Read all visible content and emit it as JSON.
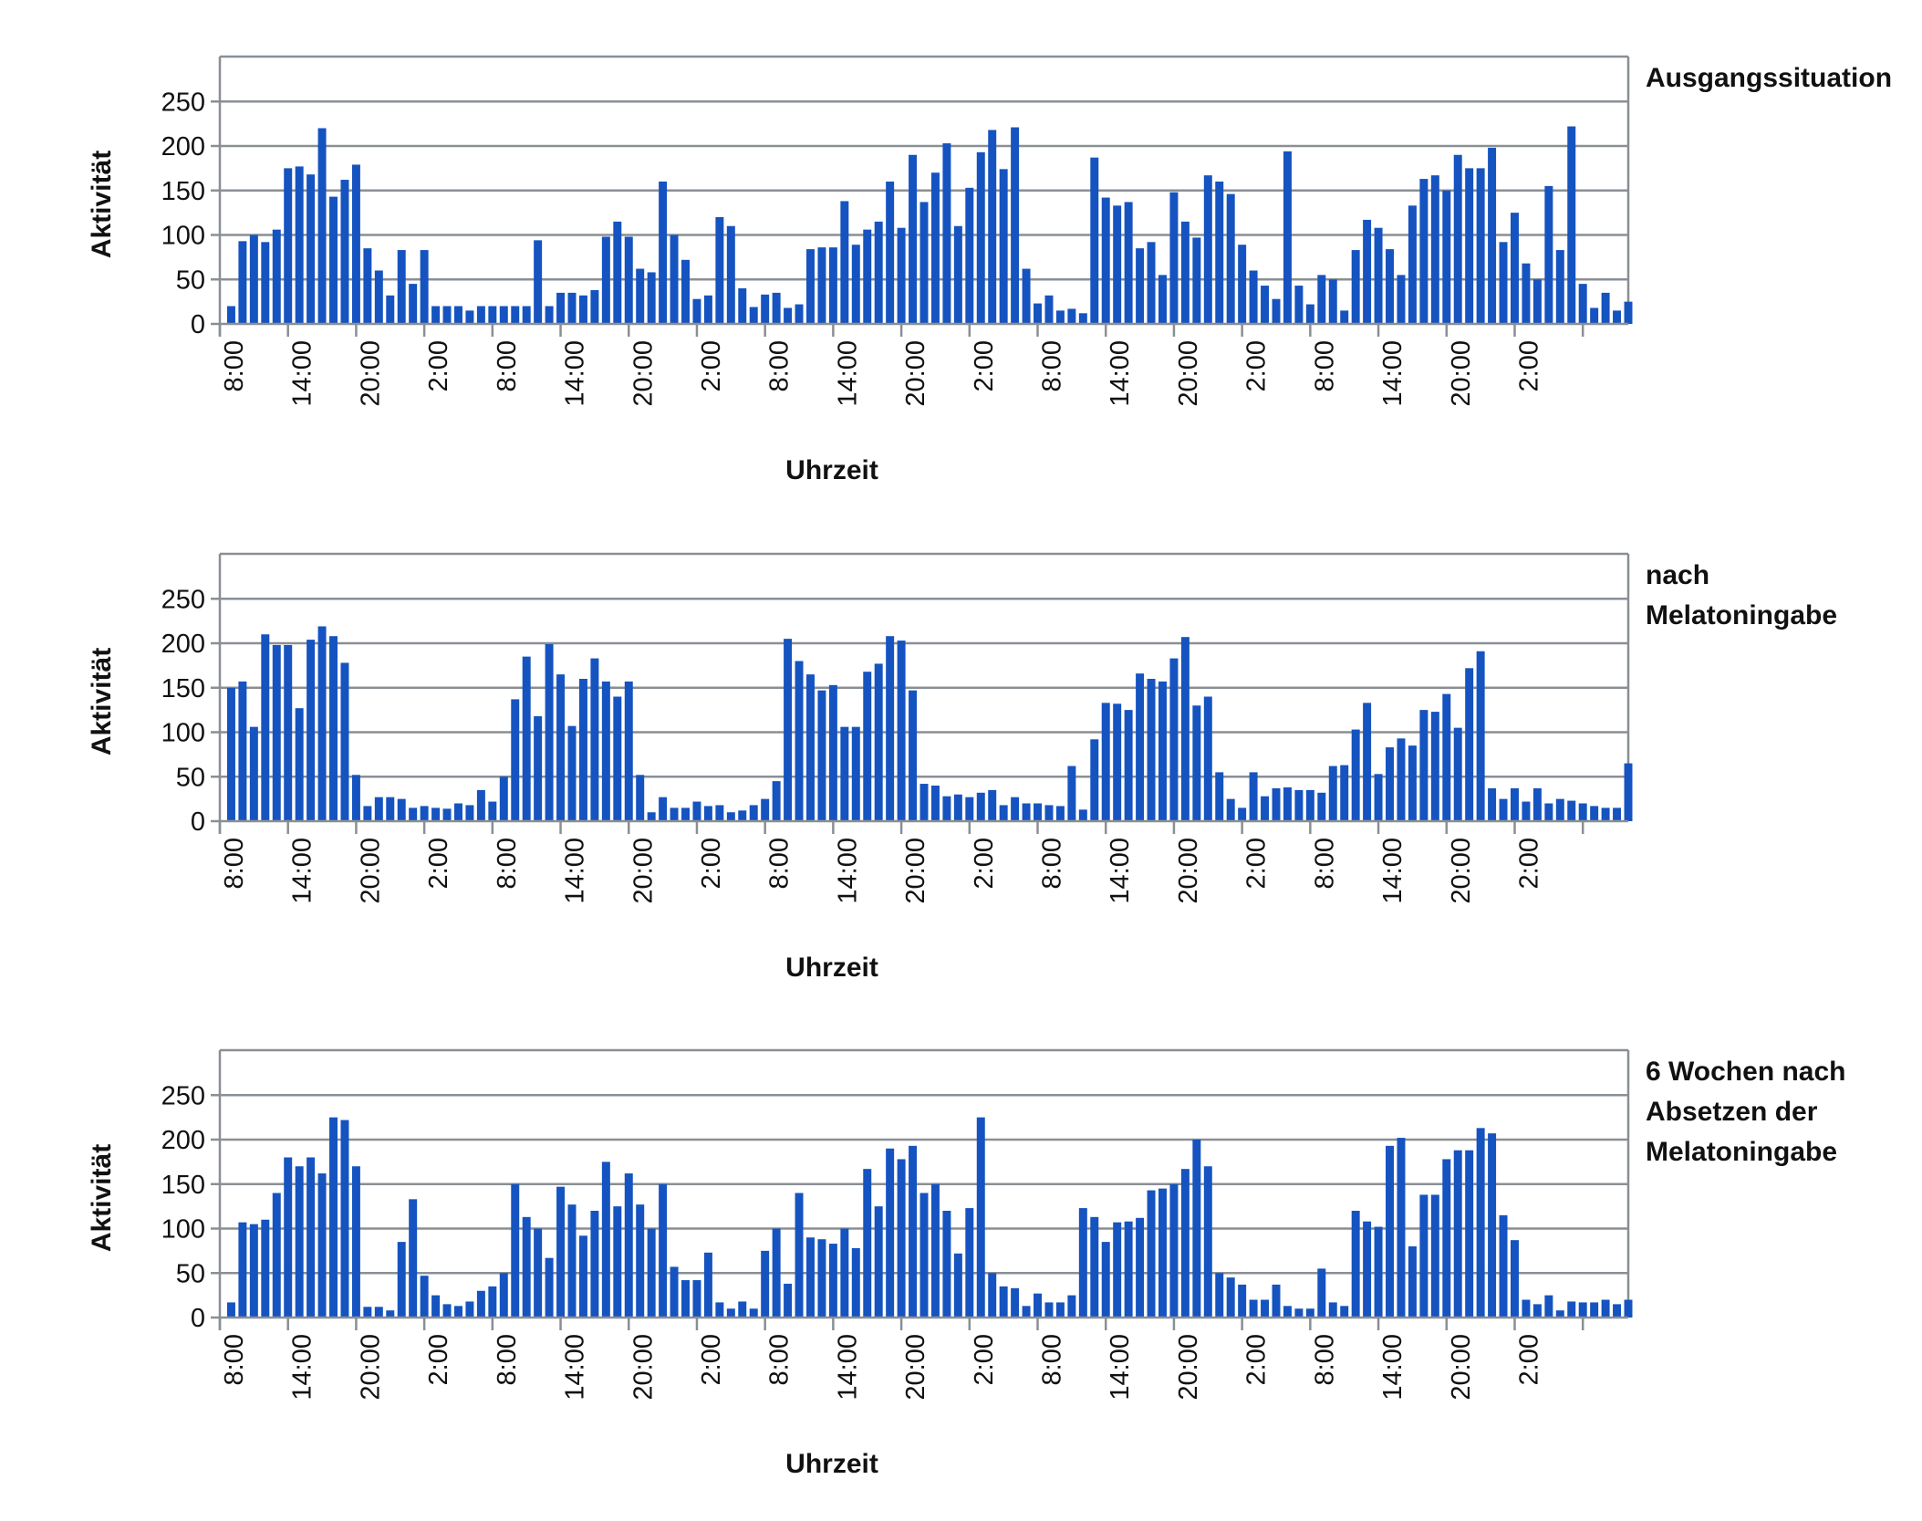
{
  "chart_data": [
    {
      "type": "bar",
      "title": "Ausgangssituation",
      "xlabel": "Uhrzeit",
      "ylabel": "Aktivität",
      "ylim": [
        0,
        300
      ],
      "yticks": [
        0,
        50,
        100,
        150,
        200,
        250
      ],
      "xtick_labels": [
        "8:00",
        "14:00",
        "20:00",
        "2:00",
        "8:00",
        "14:00",
        "20:00",
        "2:00",
        "8:00",
        "14:00",
        "20:00",
        "2:00",
        "8:00",
        "14:00",
        "20:00",
        "2:00",
        "8:00",
        "14:00",
        "20:00",
        "2:00"
      ],
      "color": "#1553c0",
      "values": [
        20,
        93,
        100,
        92,
        106,
        175,
        177,
        168,
        220,
        143,
        162,
        179,
        85,
        60,
        32,
        83,
        45,
        83,
        20,
        20,
        20,
        15,
        20,
        20,
        20,
        20,
        20,
        94,
        20,
        35,
        35,
        32,
        38,
        98,
        115,
        98,
        62,
        58,
        160,
        100,
        72,
        28,
        32,
        120,
        110,
        40,
        19,
        33,
        35,
        18,
        22,
        84,
        86,
        86,
        138,
        89,
        106,
        115,
        160,
        108,
        190,
        137,
        170,
        203,
        110,
        153,
        193,
        218,
        174,
        221,
        62,
        23,
        32,
        15,
        17,
        12,
        187,
        142,
        133,
        137,
        85,
        92,
        55,
        148,
        115,
        97,
        167,
        160,
        146,
        89,
        60,
        43,
        28,
        194,
        43,
        22,
        55,
        50,
        15,
        83,
        117,
        108,
        84,
        55,
        133,
        163,
        167,
        150,
        190,
        175,
        175,
        198,
        92,
        125,
        68,
        50,
        155,
        83,
        222,
        45,
        18,
        35,
        15,
        25
      ],
      "slot_count": 124
    },
    {
      "type": "bar",
      "title": "nach Melatoningabe",
      "xlabel": "Uhrzeit",
      "ylabel": "Aktivität",
      "ylim": [
        0,
        300
      ],
      "yticks": [
        0,
        50,
        100,
        150,
        200,
        250
      ],
      "xtick_labels": [
        "8:00",
        "14:00",
        "20:00",
        "2:00",
        "8:00",
        "14:00",
        "20:00",
        "2:00",
        "8:00",
        "14:00",
        "20:00",
        "2:00",
        "8:00",
        "14:00",
        "20:00",
        "2:00",
        "8:00",
        "14:00",
        "20:00",
        "2:00"
      ],
      "color": "#1553c0",
      "values": [
        150,
        157,
        106,
        210,
        198,
        198,
        127,
        204,
        219,
        208,
        178,
        52,
        17,
        27,
        27,
        25,
        15,
        17,
        15,
        14,
        20,
        18,
        35,
        22,
        50,
        137,
        185,
        118,
        199,
        165,
        107,
        160,
        183,
        157,
        140,
        157,
        52,
        10,
        27,
        15,
        15,
        22,
        17,
        18,
        10,
        12,
        18,
        25,
        45,
        205,
        180,
        165,
        147,
        153,
        106,
        106,
        168,
        177,
        208,
        203,
        147,
        42,
        40,
        28,
        30,
        27,
        32,
        35,
        18,
        27,
        20,
        20,
        18,
        17,
        62,
        13,
        92,
        133,
        132,
        125,
        166,
        160,
        157,
        183,
        207,
        130,
        140,
        55,
        25,
        15,
        55,
        28,
        37,
        38,
        35,
        35,
        32,
        62,
        63,
        103,
        133,
        53,
        83,
        93,
        85,
        125,
        123,
        143,
        105,
        172,
        191,
        37,
        25,
        37,
        22,
        37,
        20,
        25,
        23,
        20,
        17,
        15,
        15,
        65
      ],
      "slot_count": 124
    },
    {
      "type": "bar",
      "title": "6 Wochen nach Absetzen der Melatoningabe",
      "xlabel": "Uhrzeit",
      "ylabel": "Aktivität",
      "ylim": [
        0,
        300
      ],
      "yticks": [
        0,
        50,
        100,
        150,
        200,
        250
      ],
      "xtick_labels": [
        "8:00",
        "14:00",
        "20:00",
        "2:00",
        "8:00",
        "14:00",
        "20:00",
        "2:00",
        "8:00",
        "14:00",
        "20:00",
        "2:00",
        "8:00",
        "14:00",
        "20:00",
        "2:00",
        "8:00",
        "14:00",
        "20:00",
        "2:00"
      ],
      "color": "#1553c0",
      "values": [
        17,
        107,
        105,
        110,
        140,
        180,
        170,
        180,
        162,
        225,
        222,
        170,
        12,
        12,
        8,
        85,
        133,
        47,
        25,
        15,
        13,
        18,
        30,
        35,
        50,
        150,
        113,
        100,
        67,
        147,
        127,
        92,
        120,
        175,
        125,
        162,
        127,
        100,
        150,
        57,
        42,
        42,
        73,
        17,
        10,
        18,
        10,
        75,
        100,
        38,
        140,
        90,
        88,
        83,
        100,
        78,
        167,
        125,
        190,
        178,
        193,
        140,
        150,
        120,
        72,
        123,
        225,
        50,
        35,
        33,
        13,
        27,
        17,
        17,
        25,
        123,
        113,
        85,
        107,
        108,
        112,
        143,
        145,
        150,
        167,
        200,
        170,
        50,
        45,
        37,
        20,
        20,
        37,
        13,
        10,
        10,
        55,
        17,
        13,
        120,
        108,
        102,
        193,
        202,
        80,
        138,
        138,
        178,
        188,
        188,
        213,
        207,
        115,
        87,
        20,
        15,
        25,
        8,
        18,
        17,
        17,
        20,
        15,
        20
      ],
      "slot_count": 124
    }
  ]
}
